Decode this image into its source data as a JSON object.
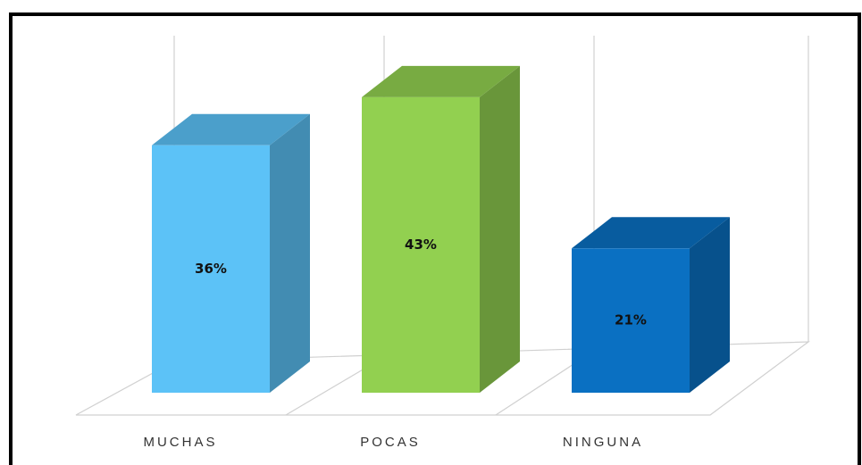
{
  "chart_data": {
    "type": "bar3d",
    "categories": [
      "MUCHAS",
      "POCAS",
      "NINGUNA"
    ],
    "values": [
      36,
      43,
      21
    ],
    "value_labels": [
      "36%",
      "43%",
      "21%"
    ],
    "colors": [
      "#5cc2f7",
      "#92d050",
      "#0a70c2"
    ]
  }
}
